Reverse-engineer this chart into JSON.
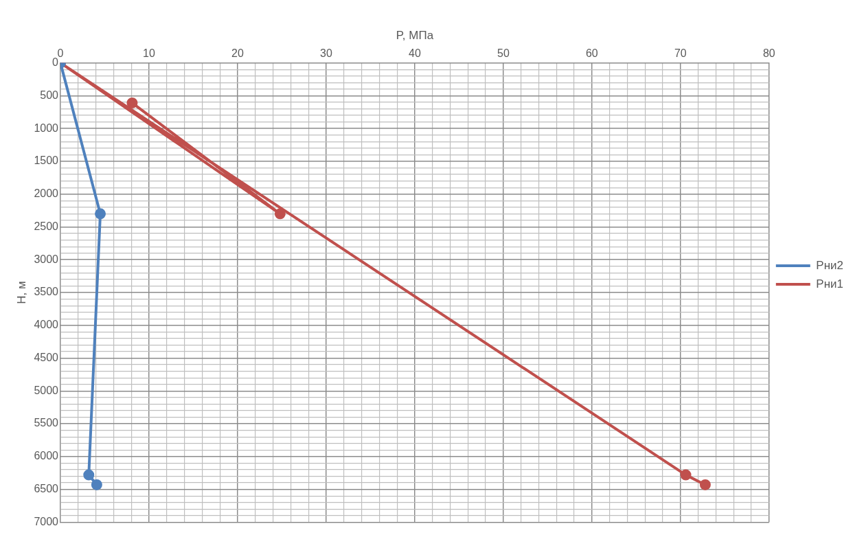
{
  "chart_data": {
    "type": "line",
    "xlabel": "P, МПа",
    "ylabel": "H, м",
    "legend": "right",
    "grid": true,
    "marker": "circle",
    "line_style": "solid",
    "xlim": [
      0,
      80
    ],
    "ylim": [
      7000,
      0
    ],
    "xticks": [
      0,
      {
        "value": 2,
        "label": null
      },
      {
        "value": 4,
        "label": null
      },
      {
        "value": 6,
        "label": null
      },
      {
        "value": 8,
        "label": null
      },
      10,
      {
        "value": 12,
        "label": null
      },
      {
        "value": 14,
        "label": null
      },
      {
        "value": 16,
        "label": null
      },
      {
        "value": 18,
        "label": null
      },
      20,
      {
        "value": 22,
        "label": null
      },
      {
        "value": 24,
        "label": null
      },
      {
        "value": 26,
        "label": null
      },
      {
        "value": 28,
        "label": null
      },
      30,
      {
        "value": 32,
        "label": null
      },
      {
        "value": 34,
        "label": null
      },
      {
        "value": 36,
        "label": null
      },
      {
        "value": 38,
        "label": null
      },
      40,
      {
        "value": 42,
        "label": null
      },
      {
        "value": 44,
        "label": null
      },
      {
        "value": 46,
        "label": null
      },
      {
        "value": 48,
        "label": null
      },
      50,
      {
        "value": 52,
        "label": null
      },
      {
        "value": 54,
        "label": null
      },
      {
        "value": 56,
        "label": null
      },
      {
        "value": 58,
        "label": null
      },
      60,
      {
        "value": 62,
        "label": null
      },
      {
        "value": 64,
        "label": null
      },
      {
        "value": 66,
        "label": null
      },
      {
        "value": 68,
        "label": null
      },
      70,
      {
        "value": 72,
        "label": null
      },
      {
        "value": 74,
        "label": null
      },
      {
        "value": 76,
        "label": null
      },
      {
        "value": 78,
        "label": null
      },
      80
    ],
    "yticks": [
      0,
      {
        "value": 100,
        "label": null
      },
      {
        "value": 200,
        "label": null
      },
      {
        "value": 300,
        "label": null
      },
      {
        "value": 400,
        "label": null
      },
      500,
      {
        "value": 600,
        "label": null
      },
      {
        "value": 700,
        "label": null
      },
      {
        "value": 800,
        "label": null
      },
      {
        "value": 900,
        "label": null
      },
      1000,
      {
        "value": 1100,
        "label": null
      },
      {
        "value": 1200,
        "label": null
      },
      {
        "value": 1300,
        "label": null
      },
      {
        "value": 1400,
        "label": null
      },
      1500,
      {
        "value": 1600,
        "label": null
      },
      {
        "value": 1700,
        "label": null
      },
      {
        "value": 1800,
        "label": null
      },
      {
        "value": 1900,
        "label": null
      },
      2000,
      {
        "value": 2100,
        "label": null
      },
      {
        "value": 2200,
        "label": null
      },
      {
        "value": 2300,
        "label": null
      },
      {
        "value": 2400,
        "label": null
      },
      2500,
      {
        "value": 2600,
        "label": null
      },
      {
        "value": 2700,
        "label": null
      },
      {
        "value": 2800,
        "label": null
      },
      {
        "value": 2900,
        "label": null
      },
      3000,
      {
        "value": 3100,
        "label": null
      },
      {
        "value": 3200,
        "label": null
      },
      {
        "value": 3300,
        "label": null
      },
      {
        "value": 3400,
        "label": null
      },
      3500,
      {
        "value": 3600,
        "label": null
      },
      {
        "value": 3700,
        "label": null
      },
      {
        "value": 3800,
        "label": null
      },
      {
        "value": 3900,
        "label": null
      },
      4000,
      {
        "value": 4100,
        "label": null
      },
      {
        "value": 4200,
        "label": null
      },
      {
        "value": 4300,
        "label": null
      },
      {
        "value": 4400,
        "label": null
      },
      4500,
      {
        "value": 4600,
        "label": null
      },
      {
        "value": 4700,
        "label": null
      },
      {
        "value": 4800,
        "label": null
      },
      {
        "value": 4900,
        "label": null
      },
      5000,
      {
        "value": 5100,
        "label": null
      },
      {
        "value": 5200,
        "label": null
      },
      {
        "value": 5300,
        "label": null
      },
      {
        "value": 5400,
        "label": null
      },
      5500,
      {
        "value": 5600,
        "label": null
      },
      {
        "value": 5700,
        "label": null
      },
      {
        "value": 5800,
        "label": null
      },
      {
        "value": 5900,
        "label": null
      },
      6000,
      {
        "value": 6100,
        "label": null
      },
      {
        "value": 6200,
        "label": null
      },
      {
        "value": 6300,
        "label": null
      },
      {
        "value": 6400,
        "label": null
      },
      6500,
      {
        "value": 6600,
        "label": null
      },
      {
        "value": 6700,
        "label": null
      },
      {
        "value": 6800,
        "label": null
      },
      {
        "value": 6900,
        "label": null
      },
      7000
    ],
    "series": [
      {
        "name": "Рни2",
        "color": "#4f81bd",
        "x": [
          0,
          4.5,
          3.2,
          4.1
        ],
        "values": [
          0,
          2300,
          6280,
          6430
        ]
      },
      {
        "name": "Рни1",
        "color": "#c0504d",
        "x": [
          8.1,
          24.8,
          0,
          70.6,
          72.8
        ],
        "values": [
          610,
          2300,
          0,
          6280,
          6430
        ]
      }
    ]
  }
}
